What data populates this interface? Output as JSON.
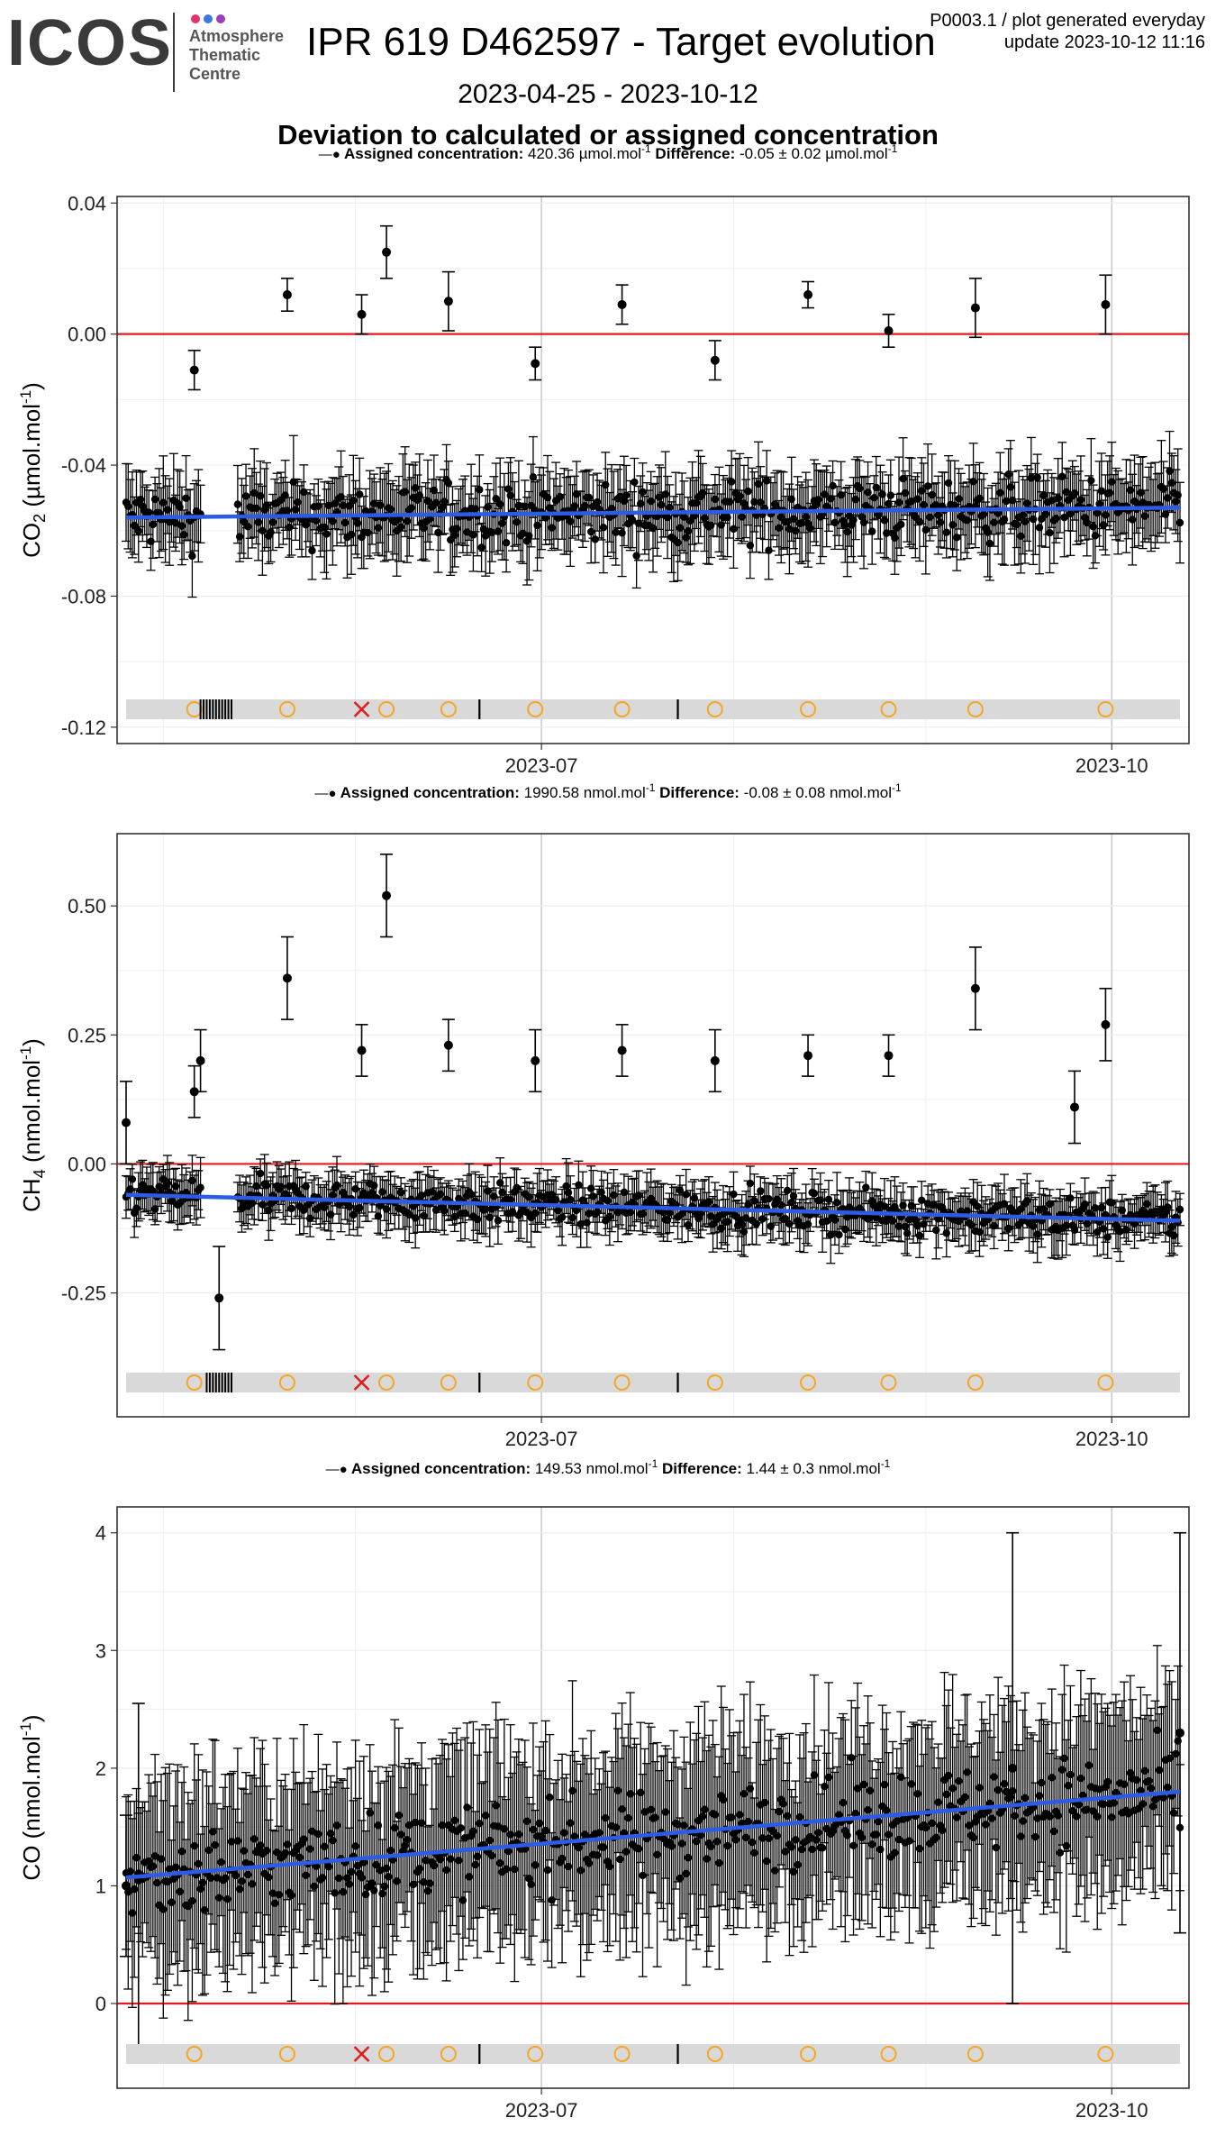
{
  "header": {
    "logo_text": "ICOS",
    "logo_subtitle": [
      "Atmosphere",
      "Thematic",
      "Centre"
    ],
    "logo_dot_colors": [
      "#e0336a",
      "#3c78d8",
      "#9b3fb6"
    ],
    "title": "IPR 619 D462597 - Target evolution",
    "corner_line1": "P0003.1 / plot generated everyday",
    "corner_line2": "update  2023-10-12 11:16",
    "date_range": "2023-04-25 - 2023-10-12",
    "section_title": "Deviation to calculated or assigned concentration"
  },
  "colors": {
    "zero_line": "#e41a1c",
    "trend_line": "#2b5ce6",
    "points": "#000000",
    "flag_circle": "#f5a623",
    "flag_cross": "#e41a1c",
    "flag_band": "#d9d9d9",
    "grid_major": "#cccccc",
    "grid_minor": "#eeeeee"
  },
  "chart_data": [
    {
      "type": "scatter",
      "gas": "CO2",
      "ylabel": "CO",
      "ylabel_sub": "2",
      "unit": "(µmol.mol",
      "legend": {
        "marker": "●",
        "assigned_label": "Assigned concentration:",
        "assigned_value": "420.36 µmol.mol",
        "difference_label": "Difference:",
        "difference_value": "-0.05 ± 0.02 µmol.mol"
      },
      "ylim": [
        -0.125,
        0.042
      ],
      "yticks": [
        0.04,
        0.0,
        -0.04,
        -0.08,
        -0.12
      ],
      "ytick_labels": [
        "0.04",
        "0.00",
        "-0.04",
        "-0.08",
        "-0.12"
      ],
      "xticks": [
        "2023-07",
        "2023-10"
      ],
      "trend": [
        [
          "2023-04-25",
          -0.056
        ],
        [
          "2023-10-12",
          -0.053
        ]
      ],
      "outliers": [
        [
          "2023-05-06",
          -0.011,
          0.006
        ],
        [
          "2023-05-21",
          0.012,
          0.005
        ],
        [
          "2023-06-02",
          0.006,
          0.006
        ],
        [
          "2023-06-06",
          0.025,
          0.008
        ],
        [
          "2023-06-16",
          0.01,
          0.009
        ],
        [
          "2023-06-30",
          -0.009,
          0.005
        ],
        [
          "2023-07-14",
          0.009,
          0.006
        ],
        [
          "2023-07-29",
          -0.008,
          0.006
        ],
        [
          "2023-08-13",
          0.012,
          0.004
        ],
        [
          "2023-08-26",
          0.001,
          0.005
        ],
        [
          "2023-09-09",
          0.008,
          0.009
        ],
        [
          "2023-09-30",
          0.009,
          0.009
        ]
      ],
      "flags": [
        {
          "kind": "circle",
          "date": "2023-05-06"
        },
        {
          "kind": "ticks",
          "from": "2023-05-07",
          "to": "2023-05-12"
        },
        {
          "kind": "circle",
          "date": "2023-05-21"
        },
        {
          "kind": "cross",
          "date": "2023-06-02"
        },
        {
          "kind": "circle",
          "date": "2023-06-06"
        },
        {
          "kind": "circle",
          "date": "2023-06-16"
        },
        {
          "kind": "tick",
          "date": "2023-06-21"
        },
        {
          "kind": "circle",
          "date": "2023-06-30"
        },
        {
          "kind": "circle",
          "date": "2023-07-14"
        },
        {
          "kind": "tick",
          "date": "2023-07-23"
        },
        {
          "kind": "circle",
          "date": "2023-07-29"
        },
        {
          "kind": "circle",
          "date": "2023-08-13"
        },
        {
          "kind": "circle",
          "date": "2023-08-26"
        },
        {
          "kind": "circle",
          "date": "2023-09-09"
        },
        {
          "kind": "circle",
          "date": "2023-09-30"
        }
      ]
    },
    {
      "type": "scatter",
      "gas": "CH4",
      "ylabel": "CH",
      "ylabel_sub": "4",
      "unit": "(nmol.mol",
      "legend": {
        "marker": "●",
        "assigned_label": "Assigned concentration:",
        "assigned_value": "1990.58 nmol.mol",
        "difference_label": "Difference:",
        "difference_value": "-0.08 ± 0.08 nmol.mol"
      },
      "ylim": [
        -0.49,
        0.64
      ],
      "yticks": [
        0.5,
        0.25,
        0.0,
        -0.25
      ],
      "ytick_labels": [
        "0.50",
        "0.25",
        "0.00",
        "-0.25"
      ],
      "xticks": [
        "2023-07",
        "2023-10"
      ],
      "trend": [
        [
          "2023-04-25",
          -0.06
        ],
        [
          "2023-10-12",
          -0.11
        ]
      ],
      "outliers": [
        [
          "2023-04-25",
          0.08,
          0.08
        ],
        [
          "2023-05-06",
          0.14,
          0.05
        ],
        [
          "2023-05-07",
          0.2,
          0.06
        ],
        [
          "2023-05-10",
          -0.26,
          0.1
        ],
        [
          "2023-05-21",
          0.36,
          0.08
        ],
        [
          "2023-06-02",
          0.22,
          0.05
        ],
        [
          "2023-06-06",
          0.52,
          0.08
        ],
        [
          "2023-06-16",
          0.23,
          0.05
        ],
        [
          "2023-06-30",
          0.2,
          0.06
        ],
        [
          "2023-07-14",
          0.22,
          0.05
        ],
        [
          "2023-07-29",
          0.2,
          0.06
        ],
        [
          "2023-08-13",
          0.21,
          0.04
        ],
        [
          "2023-08-26",
          0.21,
          0.04
        ],
        [
          "2023-09-09",
          0.34,
          0.08
        ],
        [
          "2023-09-25",
          0.11,
          0.07
        ],
        [
          "2023-09-30",
          0.27,
          0.07
        ]
      ],
      "flags": [
        {
          "kind": "circle",
          "date": "2023-05-06"
        },
        {
          "kind": "ticks",
          "from": "2023-05-08",
          "to": "2023-05-12"
        },
        {
          "kind": "circle",
          "date": "2023-05-21"
        },
        {
          "kind": "cross",
          "date": "2023-06-02"
        },
        {
          "kind": "circle",
          "date": "2023-06-06"
        },
        {
          "kind": "circle",
          "date": "2023-06-16"
        },
        {
          "kind": "tick",
          "date": "2023-06-21"
        },
        {
          "kind": "circle",
          "date": "2023-06-30"
        },
        {
          "kind": "circle",
          "date": "2023-07-14"
        },
        {
          "kind": "tick",
          "date": "2023-07-23"
        },
        {
          "kind": "circle",
          "date": "2023-07-29"
        },
        {
          "kind": "circle",
          "date": "2023-08-13"
        },
        {
          "kind": "circle",
          "date": "2023-08-26"
        },
        {
          "kind": "circle",
          "date": "2023-09-09"
        },
        {
          "kind": "circle",
          "date": "2023-09-30"
        }
      ]
    },
    {
      "type": "scatter",
      "gas": "CO",
      "ylabel": "CO",
      "ylabel_sub": "",
      "unit": "(nmol.mol",
      "legend": {
        "marker": "●",
        "assigned_label": "Assigned concentration:",
        "assigned_value": "149.53 nmol.mol",
        "difference_label": "Difference:",
        "difference_value": "1.44 ± 0.3 nmol.mol"
      },
      "ylim": [
        -0.72,
        4.22
      ],
      "yticks": [
        4,
        3,
        2,
        1,
        0
      ],
      "ytick_labels": [
        "4",
        "3",
        "2",
        "1",
        "0"
      ],
      "xticks": [
        "2023-07",
        "2023-10"
      ],
      "trend": [
        [
          "2023-04-25",
          1.07
        ],
        [
          "2023-10-12",
          1.8
        ]
      ],
      "outliers": [
        [
          "2023-04-25",
          1.0,
          0.6
        ],
        [
          "2023-04-27",
          1.05,
          1.5
        ],
        [
          "2023-09-15",
          2.0,
          2.0
        ],
        [
          "2023-10-12",
          2.3,
          1.7
        ]
      ],
      "flags": [
        {
          "kind": "circle",
          "date": "2023-05-06"
        },
        {
          "kind": "circle",
          "date": "2023-05-21"
        },
        {
          "kind": "cross",
          "date": "2023-06-02"
        },
        {
          "kind": "circle",
          "date": "2023-06-06"
        },
        {
          "kind": "circle",
          "date": "2023-06-16"
        },
        {
          "kind": "tick",
          "date": "2023-06-21"
        },
        {
          "kind": "circle",
          "date": "2023-06-30"
        },
        {
          "kind": "circle",
          "date": "2023-07-14"
        },
        {
          "kind": "tick",
          "date": "2023-07-23"
        },
        {
          "kind": "circle",
          "date": "2023-07-29"
        },
        {
          "kind": "circle",
          "date": "2023-08-13"
        },
        {
          "kind": "circle",
          "date": "2023-08-26"
        },
        {
          "kind": "circle",
          "date": "2023-09-09"
        },
        {
          "kind": "circle",
          "date": "2023-09-30"
        }
      ]
    }
  ]
}
